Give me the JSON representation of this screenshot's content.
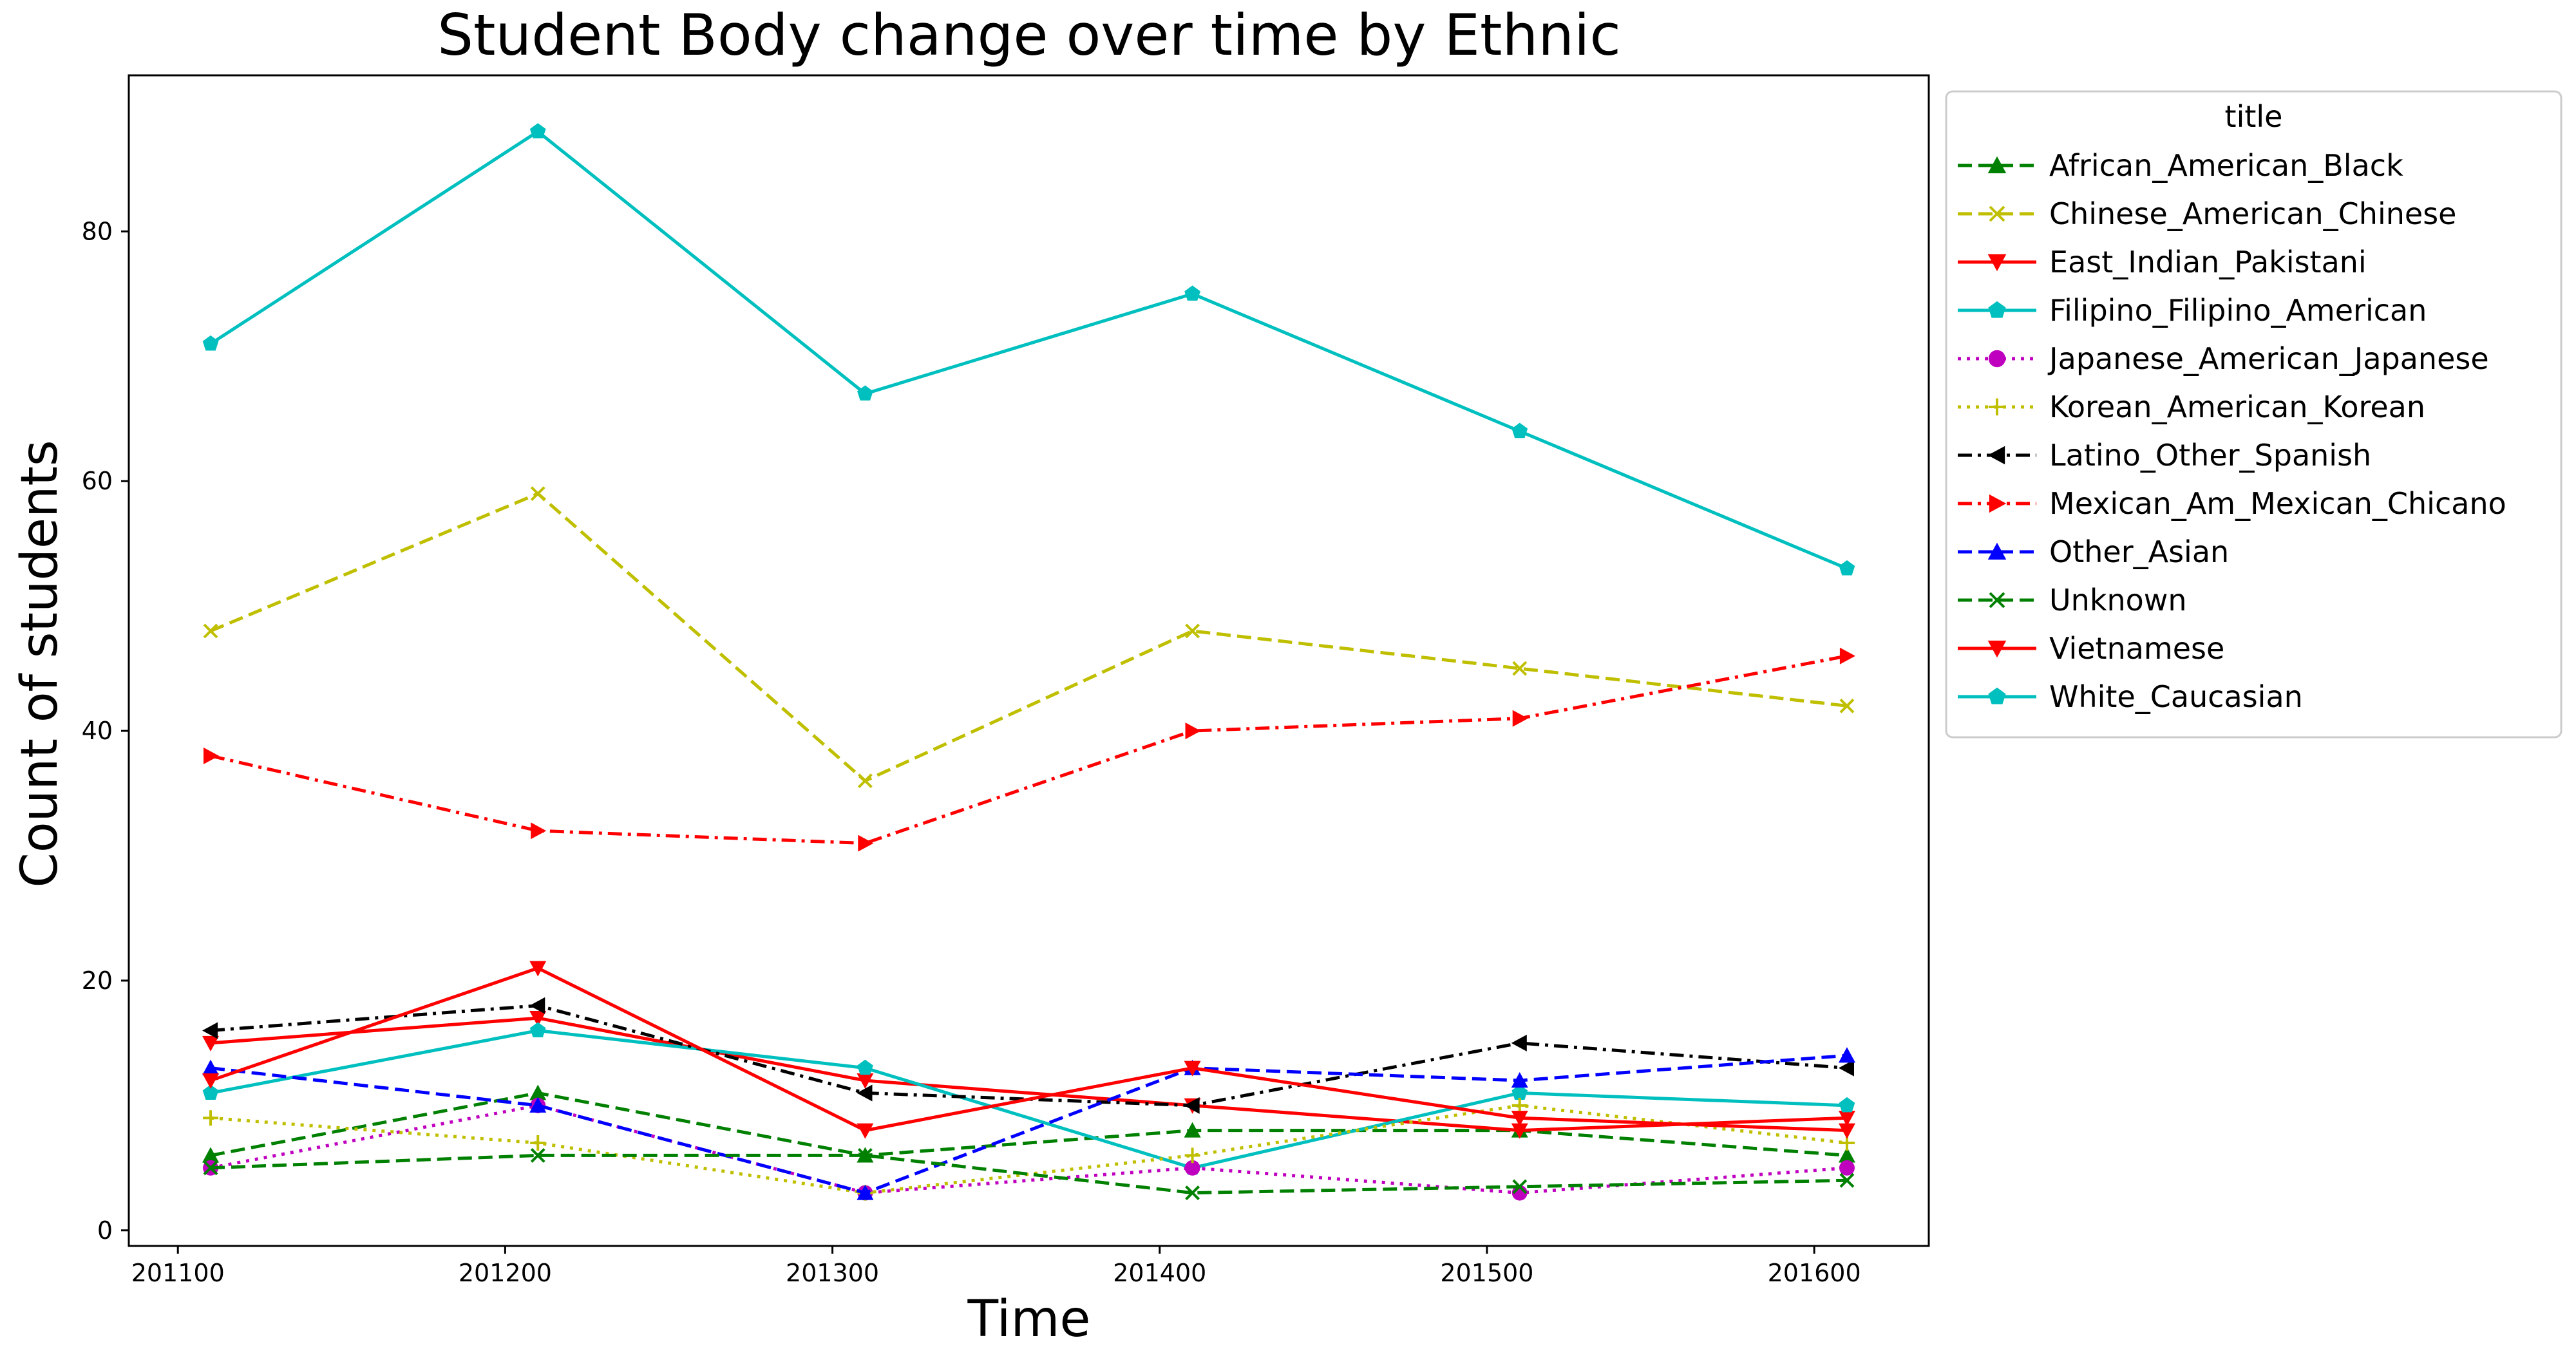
{
  "chart_data": {
    "type": "line",
    "title": "Student Body change over time by Ethnic",
    "xlabel": "Time",
    "ylabel": "Count of students",
    "x": [
      201110,
      201210,
      201310,
      201410,
      201510,
      201610
    ],
    "x_ticks": [
      201100,
      201200,
      201300,
      201400,
      201500,
      201600
    ],
    "x_tick_labels": [
      "201100",
      "201200",
      "201300",
      "201400",
      "201500",
      "201600"
    ],
    "xlim": [
      201085,
      201635
    ],
    "y_ticks": [
      0,
      20,
      40,
      60,
      80
    ],
    "y_tick_labels": [
      "0",
      "20",
      "40",
      "60",
      "80"
    ],
    "ylim": [
      -1.25,
      92.5
    ],
    "grid": false,
    "legend": {
      "title": "title",
      "placement": "outside-top-right"
    },
    "series": [
      {
        "name": "African_American_Black",
        "values": [
          6,
          11,
          6,
          8,
          8,
          6
        ],
        "color": "#008000",
        "dash": "dashed",
        "marker": "triangle-up"
      },
      {
        "name": "Chinese_American_Chinese",
        "values": [
          48,
          59,
          36,
          48,
          45,
          42
        ],
        "color": "#bfbf00",
        "dash": "dashed",
        "marker": "x"
      },
      {
        "name": "East_Indian_Pakistani",
        "values": [
          15,
          17,
          12,
          10,
          8,
          9
        ],
        "color": "#ff0000",
        "dash": "solid",
        "marker": "triangle-down"
      },
      {
        "name": "Filipino_Filipino_American",
        "values": [
          11,
          16,
          13,
          5,
          11,
          10
        ],
        "color": "#00bfbf",
        "dash": "solid",
        "marker": "pentagon"
      },
      {
        "name": "Japanese_American_Japanese",
        "values": [
          5,
          10,
          3,
          5,
          3,
          5
        ],
        "color": "#bf00bf",
        "dash": "dotted",
        "marker": "circle"
      },
      {
        "name": "Korean_American_Korean",
        "values": [
          9,
          7,
          3,
          6,
          10,
          7
        ],
        "color": "#bfbf00",
        "dash": "dotted",
        "marker": "plus"
      },
      {
        "name": "Latino_Other_Spanish",
        "values": [
          16,
          18,
          11,
          10,
          15,
          13
        ],
        "color": "#000000",
        "dash": "dashdot",
        "marker": "triangle-left"
      },
      {
        "name": "Mexican_Am_Mexican_Chicano",
        "values": [
          38,
          32,
          31,
          40,
          41,
          46
        ],
        "color": "#ff0000",
        "dash": "dashdot",
        "marker": "triangle-right"
      },
      {
        "name": "Other_Asian",
        "values": [
          13,
          10,
          3,
          13,
          12,
          14
        ],
        "color": "#0000ff",
        "dash": "dashed",
        "marker": "triangle-up"
      },
      {
        "name": "Unknown",
        "values": [
          5,
          6,
          6,
          3,
          3.5,
          4
        ],
        "color": "#008000",
        "dash": "dashed",
        "marker": "x"
      },
      {
        "name": "Vietnamese",
        "values": [
          12,
          21,
          8,
          13,
          9,
          8
        ],
        "color": "#ff0000",
        "dash": "solid",
        "marker": "triangle-down"
      },
      {
        "name": "White_Caucasian",
        "values": [
          71,
          88,
          67,
          75,
          64,
          53
        ],
        "color": "#00bfbf",
        "dash": "solid",
        "marker": "pentagon"
      }
    ]
  }
}
